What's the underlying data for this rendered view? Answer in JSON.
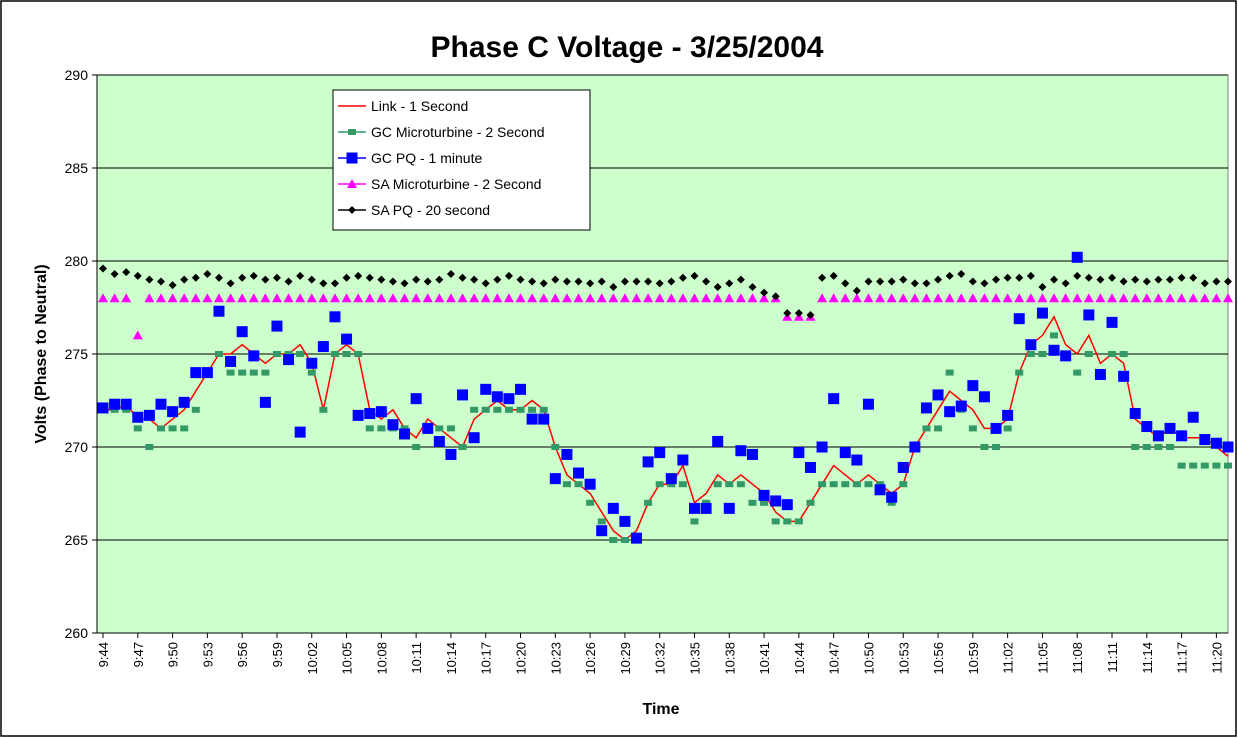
{
  "chart_data": {
    "type": "line",
    "title": "Phase C Voltage - 3/25/2004",
    "x_label": "Time",
    "y_label": "Volts (Phase to Neutral)",
    "categories": [
      "9:44",
      null,
      null,
      "9:47",
      null,
      null,
      "9:50",
      null,
      null,
      "9:53",
      null,
      null,
      "9:56",
      null,
      null,
      "9:59",
      null,
      null,
      "10:02",
      null,
      null,
      "10:05",
      null,
      null,
      "10:08",
      null,
      null,
      "10:11",
      null,
      null,
      "10:14",
      null,
      null,
      "10:17",
      null,
      null,
      "10:20",
      null,
      null,
      "10:23",
      null,
      null,
      "10:26",
      null,
      null,
      "10:29",
      null,
      null,
      "10:32",
      null,
      null,
      "10:35",
      null,
      null,
      "10:38",
      null,
      null,
      "10:41",
      null,
      null,
      "10:44",
      null,
      null,
      "10:47",
      null,
      null,
      "10:50",
      null,
      null,
      "10:53",
      null,
      null,
      "10:56",
      null,
      null,
      "10:59",
      null,
      null,
      "11:02",
      null,
      null,
      "11:05",
      null,
      null,
      "11:08",
      null,
      null,
      "11:11",
      null,
      null,
      "11:14",
      null,
      null,
      "11:17",
      null,
      null,
      "11:20",
      null
    ],
    "ylim": [
      260,
      290
    ],
    "yticks": [
      260,
      265,
      270,
      275,
      280,
      285,
      290
    ],
    "grid": true,
    "plot_background": "#ccffcc",
    "series": [
      {
        "name": "Link - 1 Second",
        "color": "#ff0000",
        "line": true,
        "marker": "none",
        "values": [
          272,
          272,
          272.3,
          271.5,
          271.5,
          271,
          271.5,
          272,
          273,
          274,
          275,
          275,
          275.5,
          275,
          274.5,
          275,
          275,
          275.5,
          274.5,
          272,
          275,
          275.5,
          275,
          272,
          271.5,
          272,
          271,
          270.5,
          271.5,
          271,
          270.5,
          270,
          271.5,
          272,
          272.5,
          272,
          272,
          272.5,
          272,
          270,
          268.5,
          268,
          267.5,
          266.5,
          265.5,
          265,
          265.5,
          267,
          268,
          268,
          269,
          267,
          267.5,
          268.5,
          268,
          268.5,
          268,
          267.5,
          266.5,
          266,
          266,
          267,
          268,
          269,
          268.5,
          268,
          268.5,
          268,
          267.5,
          268,
          270,
          271,
          272,
          273,
          272.5,
          272,
          271,
          271,
          271.5,
          274,
          275.5,
          276,
          277,
          275.5,
          275,
          276,
          274.5,
          275,
          274.5,
          271.5,
          271,
          270.5,
          271,
          270.5,
          270.5,
          270.5,
          270,
          269.5
        ]
      },
      {
        "name": "GC Microturbine  - 2 Second",
        "color": "#339966",
        "line": false,
        "marker": "square",
        "values": [
          272,
          272,
          272,
          271,
          270,
          271,
          271,
          271,
          272,
          274,
          275,
          274,
          274,
          274,
          274,
          275,
          275,
          275,
          274,
          272,
          275,
          275,
          275,
          271,
          271,
          271,
          271,
          270,
          271,
          271,
          271,
          270,
          272,
          272,
          272,
          272,
          272,
          272,
          272,
          270,
          268,
          268,
          267,
          266,
          265,
          265,
          265,
          267,
          268,
          268,
          268,
          266,
          267,
          268,
          268,
          268,
          267,
          267,
          266,
          266,
          266,
          267,
          268,
          268,
          268,
          268,
          268,
          268,
          267,
          268,
          270,
          271,
          271,
          274,
          272,
          271,
          270,
          270,
          271,
          274,
          275,
          275,
          276,
          275,
          274,
          275,
          274,
          275,
          275,
          270,
          270,
          270,
          270,
          269,
          269,
          269,
          269,
          269
        ]
      },
      {
        "name": "GC PQ - 1 minute",
        "color": "#0000ff",
        "line": false,
        "marker": "bigsquare",
        "values": [
          272.1,
          272.3,
          272.3,
          271.6,
          271.7,
          272.3,
          271.9,
          272.4,
          274.0,
          274.0,
          277.3,
          274.6,
          276.2,
          274.9,
          272.4,
          276.5,
          274.7,
          270.8,
          274.5,
          275.4,
          277.0,
          275.8,
          271.7,
          271.8,
          271.9,
          271.2,
          270.7,
          272.6,
          271.0,
          270.3,
          269.6,
          272.8,
          270.5,
          273.1,
          272.7,
          272.6,
          273.1,
          271.5,
          271.5,
          268.3,
          269.6,
          268.6,
          268.0,
          265.5,
          266.7,
          266.0,
          265.1,
          269.2,
          269.7,
          268.3,
          269.3,
          266.7,
          266.7,
          270.3,
          266.7,
          269.8,
          269.6,
          267.4,
          267.1,
          266.9,
          269.7,
          268.9,
          270.0,
          272.6,
          269.7,
          269.3,
          272.3,
          267.7,
          267.3,
          268.9,
          270.0,
          272.1,
          272.8,
          271.9,
          272.2,
          273.3,
          272.7,
          271.0,
          271.7,
          276.9,
          275.5,
          277.2,
          275.2,
          274.9,
          280.2,
          277.1,
          273.9,
          276.7,
          273.8,
          271.8,
          271.1,
          270.6,
          271.0,
          270.6,
          271.6,
          270.4,
          270.2,
          270.0
        ]
      },
      {
        "name": "SA Microturbine - 2 Second",
        "color": "#ff00ff",
        "line": false,
        "marker": "triangle",
        "values": [
          278,
          278,
          278,
          276,
          278,
          278,
          278,
          278,
          278,
          278,
          278,
          278,
          278,
          278,
          278,
          278,
          278,
          278,
          278,
          278,
          278,
          278,
          278,
          278,
          278,
          278,
          278,
          278,
          278,
          278,
          278,
          278,
          278,
          278,
          278,
          278,
          278,
          278,
          278,
          278,
          278,
          278,
          278,
          278,
          278,
          278,
          278,
          278,
          278,
          278,
          278,
          278,
          278,
          278,
          278,
          278,
          278,
          278,
          278,
          277,
          277,
          277,
          278,
          278,
          278,
          278,
          278,
          278,
          278,
          278,
          278,
          278,
          278,
          278,
          278,
          278,
          278,
          278,
          278,
          278,
          278,
          278,
          278,
          278,
          278,
          278,
          278,
          278,
          278,
          278,
          278,
          278,
          278,
          278,
          278,
          278,
          278,
          278
        ]
      },
      {
        "name": "SA PQ - 20 second",
        "color": "#000000",
        "line": false,
        "marker": "diamond",
        "values": [
          279.6,
          279.3,
          279.4,
          279.2,
          279.0,
          278.9,
          278.7,
          279.0,
          279.1,
          279.3,
          279.1,
          278.8,
          279.1,
          279.2,
          279.0,
          279.1,
          278.9,
          279.2,
          279.0,
          278.8,
          278.8,
          279.1,
          279.2,
          279.1,
          279.0,
          278.9,
          278.8,
          279.0,
          278.9,
          279.0,
          279.3,
          279.1,
          279.0,
          278.8,
          279.0,
          279.2,
          279.0,
          278.9,
          278.8,
          279.0,
          278.9,
          278.9,
          278.8,
          278.9,
          278.6,
          278.9,
          278.9,
          278.9,
          278.8,
          278.9,
          279.1,
          279.2,
          278.9,
          278.6,
          278.8,
          279.0,
          278.6,
          278.3,
          278.1,
          277.2,
          277.2,
          277.1,
          279.1,
          279.2,
          278.8,
          278.4,
          278.9,
          278.9,
          278.9,
          279.0,
          278.8,
          278.8,
          279.0,
          279.2,
          279.3,
          278.9,
          278.8,
          279.0,
          279.1,
          279.1,
          279.2,
          278.6,
          279.0,
          278.8,
          279.2,
          279.1,
          279.0,
          279.1,
          278.9,
          279.0,
          278.9,
          279.0,
          279.0,
          279.1,
          279.1,
          278.8,
          278.9,
          278.9
        ]
      }
    ]
  }
}
